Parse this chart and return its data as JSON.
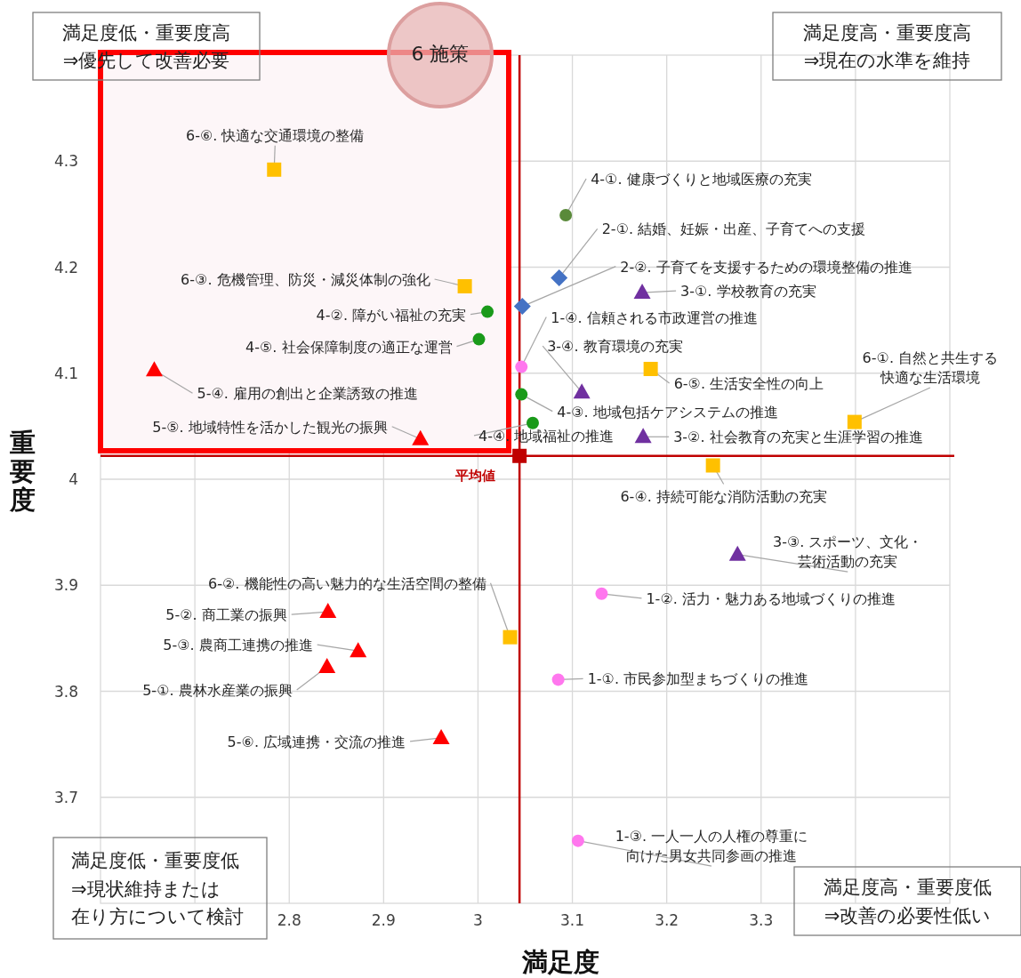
{
  "chart_data": {
    "type": "scatter",
    "xlabel": "満足度",
    "ylabel": "重要度",
    "xlim": [
      2.6,
      3.5
    ],
    "ylim": [
      3.6,
      4.4
    ],
    "xticks": [
      {
        "value": 2.7,
        "label": null
      },
      2.8,
      2.9,
      3.0,
      3.1,
      3.2,
      3.3,
      {
        "value": 3.4,
        "label": null
      }
    ],
    "yticks": [
      3.7,
      3.8,
      3.9,
      4.0,
      4.1,
      4.2,
      4.3
    ],
    "grid": true,
    "legend": false,
    "ref_lines": [
      {
        "axis": "x",
        "value": 3.044,
        "color": "#c00000"
      },
      {
        "axis": "y",
        "value": 4.022,
        "color": "#c00000"
      }
    ],
    "series": [
      {
        "color": "#ff77ee",
        "marker": "circle",
        "x": [
          3.046,
          3.131,
          3.085,
          3.106
        ],
        "values": [
          4.106,
          3.892,
          3.811,
          3.659
        ]
      },
      {
        "color": "#4472c4",
        "marker": "diamond",
        "x": [
          3.086,
          3.047
        ],
        "values": [
          4.19,
          4.163
        ]
      },
      {
        "color": "#7030a0",
        "marker": "triangle",
        "x": [
          3.174,
          3.11,
          3.175,
          3.275
        ],
        "values": [
          4.176,
          4.082,
          4.04,
          3.929
        ]
      },
      {
        "color": "#1a9a1a",
        "colors": [
          "#5a8a3a",
          null,
          null,
          null,
          null
        ],
        "marker": "circle",
        "x": [
          3.093,
          3.01,
          3.001,
          3.046,
          3.058
        ],
        "values": [
          4.249,
          4.158,
          4.132,
          4.08,
          4.053
        ]
      },
      {
        "color": "#ff0000",
        "marker": "triangle",
        "x": [
          2.657,
          2.939,
          2.841,
          2.873,
          2.84,
          2.961
        ],
        "values": [
          4.103,
          4.038,
          3.875,
          3.838,
          3.823,
          3.756
        ]
      },
      {
        "color": "#ffc000",
        "marker": "square",
        "x": [
          2.784,
          2.986,
          3.183,
          3.399,
          3.249,
          3.034
        ],
        "values": [
          4.292,
          4.182,
          4.104,
          4.054,
          4.013,
          3.851
        ]
      },
      {
        "name": "平均値",
        "color": "#c00000",
        "marker": "square",
        "x": [
          3.044
        ],
        "values": [
          4.022
        ]
      }
    ],
    "annotations": [
      "満足度低・重要度高\n⇒優先して改善必要",
      "満足度高・重要度高\n⇒現在の水準を維持",
      "満足度低・重要度低\n⇒現状維持または在り方について検討",
      "満足度高・重要度低\n⇒改善の必要性低い",
      "6 施策",
      {
        "text": "1-④. 信頼される市政運営の推進",
        "x": 3.046,
        "y": 4.106
      },
      {
        "text": "1-②. 活力・魅力ある地域づくりの推進",
        "x": 3.131,
        "y": 3.892
      },
      {
        "text": "1-①. 市民参加型まちづくりの推進",
        "x": 3.085,
        "y": 3.811
      },
      {
        "text": "1-③. 一人一人の人権の尊重に向けた男女共同参画の推進",
        "x": 3.106,
        "y": 3.659
      },
      {
        "text": "2-①. 結婚、妊娠・出産、子育てへの支援",
        "x": 3.086,
        "y": 4.19
      },
      {
        "text": "2-②. 子育てを支援するための環境整備の推進",
        "x": 3.047,
        "y": 4.163
      },
      {
        "text": "3-①. 学校教育の充実",
        "x": 3.174,
        "y": 4.176
      },
      {
        "text": "3-④. 教育環境の充実",
        "x": 3.11,
        "y": 4.082
      },
      {
        "text": "3-②. 社会教育の充実と生涯学習の推進",
        "x": 3.175,
        "y": 4.04
      },
      {
        "text": "3-③. スポーツ、文化・芸術活動の充実",
        "x": 3.275,
        "y": 3.929
      },
      {
        "text": "4-①. 健康づくりと地域医療の充実",
        "x": 3.093,
        "y": 4.249
      },
      {
        "text": "4-②. 障がい福祉の充実",
        "x": 3.01,
        "y": 4.158
      },
      {
        "text": "4-⑤. 社会保障制度の適正な運営",
        "x": 3.001,
        "y": 4.132
      },
      {
        "text": "4-③. 地域包括ケアシステムの推進",
        "x": 3.046,
        "y": 4.08
      },
      {
        "text": "4-④. 地域福祉の推進",
        "x": 3.058,
        "y": 4.053
      },
      {
        "text": "5-④. 雇用の創出と企業誘致の推進",
        "x": 2.657,
        "y": 4.103
      },
      {
        "text": "5-⑤. 地域特性を活かした観光の振興",
        "x": 2.939,
        "y": 4.038
      },
      {
        "text": "5-②. 商工業の振興",
        "x": 2.841,
        "y": 3.875
      },
      {
        "text": "5-③. 農商工連携の推進",
        "x": 2.873,
        "y": 3.838
      },
      {
        "text": "5-①. 農林水産業の振興",
        "x": 2.84,
        "y": 3.823
      },
      {
        "text": "5-⑥. 広域連携・交流の推進",
        "x": 2.961,
        "y": 3.756
      },
      {
        "text": "6-⑥. 快適な交通環境の整備",
        "x": 2.784,
        "y": 4.292
      },
      {
        "text": "6-③. 危機管理、防災・減災体制の強化",
        "x": 2.986,
        "y": 4.182
      },
      {
        "text": "6-⑤. 生活安全性の向上",
        "x": 3.183,
        "y": 4.104
      },
      {
        "text": "6-①. 自然と共生する快適な生活環境",
        "x": 3.399,
        "y": 4.054
      },
      {
        "text": "6-④. 持続可能な消防活動の充実",
        "x": 3.249,
        "y": 4.013
      },
      {
        "text": "6-②. 機能性の高い魅力的な生活空間の整備",
        "x": 3.034,
        "y": 3.851
      }
    ]
  }
}
